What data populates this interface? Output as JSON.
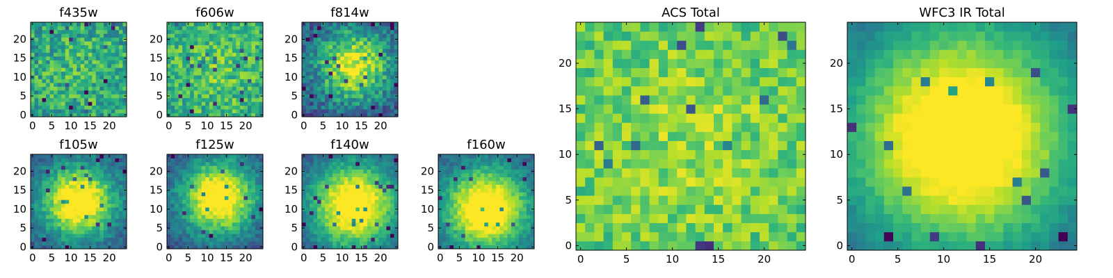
{
  "chart_data": [
    {
      "type": "heatmap",
      "title": "f435w",
      "size": 25,
      "xticks": [
        0,
        5,
        10,
        15,
        20
      ],
      "yticks": [
        0,
        5,
        10,
        15,
        20
      ],
      "pattern": "noise",
      "center": [
        12,
        12
      ],
      "peak": 0.55,
      "sigma": 9,
      "noise": 0.42,
      "seed": 11
    },
    {
      "type": "heatmap",
      "title": "f606w",
      "size": 25,
      "xticks": [
        0,
        5,
        10,
        15,
        20
      ],
      "yticks": [
        0,
        5,
        10,
        15,
        20
      ],
      "pattern": "noise",
      "center": [
        12,
        12
      ],
      "peak": 0.62,
      "sigma": 8,
      "noise": 0.38,
      "seed": 23
    },
    {
      "type": "heatmap",
      "title": "f814w",
      "size": 25,
      "xticks": [
        0,
        5,
        10,
        15,
        20
      ],
      "yticks": [
        0,
        5,
        10,
        15,
        20
      ],
      "pattern": "blob",
      "center": [
        13,
        13
      ],
      "peak": 0.72,
      "sigma": 7,
      "noise": 0.36,
      "seed": 37
    },
    {
      "type": "heatmap",
      "title": "f105w",
      "size": 25,
      "xticks": [
        0,
        5,
        10,
        15,
        20
      ],
      "yticks": [
        0,
        5,
        10,
        15,
        20
      ],
      "pattern": "blob",
      "center": [
        12,
        12
      ],
      "peak": 0.88,
      "sigma": 7,
      "noise": 0.22,
      "seed": 41
    },
    {
      "type": "heatmap",
      "title": "f125w",
      "size": 25,
      "xticks": [
        0,
        5,
        10,
        15,
        20
      ],
      "yticks": [
        0,
        5,
        10,
        15,
        20
      ],
      "pattern": "blob",
      "center": [
        13,
        13
      ],
      "peak": 0.88,
      "sigma": 7,
      "noise": 0.22,
      "seed": 53
    },
    {
      "type": "heatmap",
      "title": "f140w",
      "size": 25,
      "xticks": [
        0,
        5,
        10,
        15,
        20
      ],
      "yticks": [
        0,
        5,
        10,
        15,
        20
      ],
      "pattern": "blob",
      "center": [
        13,
        11
      ],
      "peak": 0.9,
      "sigma": 8,
      "noise": 0.18,
      "seed": 67
    },
    {
      "type": "heatmap",
      "title": "f160w",
      "size": 25,
      "xticks": [
        0,
        5,
        10,
        15,
        20
      ],
      "yticks": [
        0,
        5,
        10,
        15,
        20
      ],
      "pattern": "blob",
      "center": [
        12,
        10
      ],
      "peak": 0.92,
      "sigma": 8,
      "noise": 0.18,
      "seed": 79
    },
    {
      "type": "heatmap",
      "title": "ACS Total",
      "size": 25,
      "xticks": [
        0,
        5,
        10,
        15,
        20
      ],
      "yticks": [
        0,
        5,
        10,
        15,
        20
      ],
      "pattern": "noise",
      "center": [
        12,
        11
      ],
      "peak": 0.72,
      "sigma": 9,
      "noise": 0.3,
      "seed": 97
    },
    {
      "type": "heatmap",
      "title": "WFC3 IR Total",
      "size": 25,
      "xticks": [
        0,
        5,
        10,
        15,
        20
      ],
      "yticks": [
        0,
        5,
        10,
        15,
        20
      ],
      "pattern": "blob",
      "center": [
        12,
        12
      ],
      "peak": 0.95,
      "sigma": 9,
      "noise": 0.1,
      "seed": 131
    }
  ],
  "colormap": [
    "#440154",
    "#482878",
    "#3e4a89",
    "#31688e",
    "#26828e",
    "#1f9e89",
    "#35b779",
    "#6ece58",
    "#b5de2b",
    "#fde725"
  ]
}
